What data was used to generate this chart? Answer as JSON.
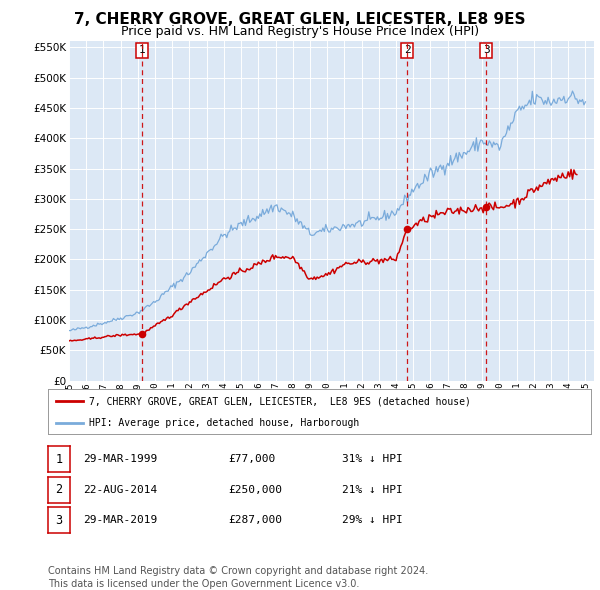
{
  "title": "7, CHERRY GROVE, GREAT GLEN, LEICESTER, LE8 9ES",
  "subtitle": "Price paid vs. HM Land Registry's House Price Index (HPI)",
  "title_fontsize": 11,
  "subtitle_fontsize": 9,
  "background_color": "#ffffff",
  "plot_bg_color": "#dce8f5",
  "grid_color": "#ffffff",
  "ylim": [
    0,
    560000
  ],
  "yticks": [
    0,
    50000,
    100000,
    150000,
    200000,
    250000,
    300000,
    350000,
    400000,
    450000,
    500000,
    550000
  ],
  "xlim_start": 1995.0,
  "xlim_end": 2025.5,
  "xtick_years": [
    1995,
    1996,
    1997,
    1998,
    1999,
    2000,
    2001,
    2002,
    2003,
    2004,
    2005,
    2006,
    2007,
    2008,
    2009,
    2010,
    2011,
    2012,
    2013,
    2014,
    2015,
    2016,
    2017,
    2018,
    2019,
    2020,
    2021,
    2022,
    2023,
    2024,
    2025
  ],
  "red_color": "#cc0000",
  "blue_color": "#7aabdb",
  "sale_marker_color": "#cc0000",
  "sale_dates": [
    1999.24,
    2014.64,
    2019.24
  ],
  "sale_prices": [
    77000,
    250000,
    287000
  ],
  "sale_labels": [
    "1",
    "2",
    "3"
  ],
  "vline_color": "#cc0000",
  "legend_label_red": "7, CHERRY GROVE, GREAT GLEN, LEICESTER,  LE8 9ES (detached house)",
  "legend_label_blue": "HPI: Average price, detached house, Harborough",
  "table_rows": [
    [
      "1",
      "29-MAR-1999",
      "£77,000",
      "31% ↓ HPI"
    ],
    [
      "2",
      "22-AUG-2014",
      "£250,000",
      "21% ↓ HPI"
    ],
    [
      "3",
      "29-MAR-2019",
      "£287,000",
      "29% ↓ HPI"
    ]
  ],
  "footnote": "Contains HM Land Registry data © Crown copyright and database right 2024.\nThis data is licensed under the Open Government Licence v3.0.",
  "footnote_fontsize": 7
}
